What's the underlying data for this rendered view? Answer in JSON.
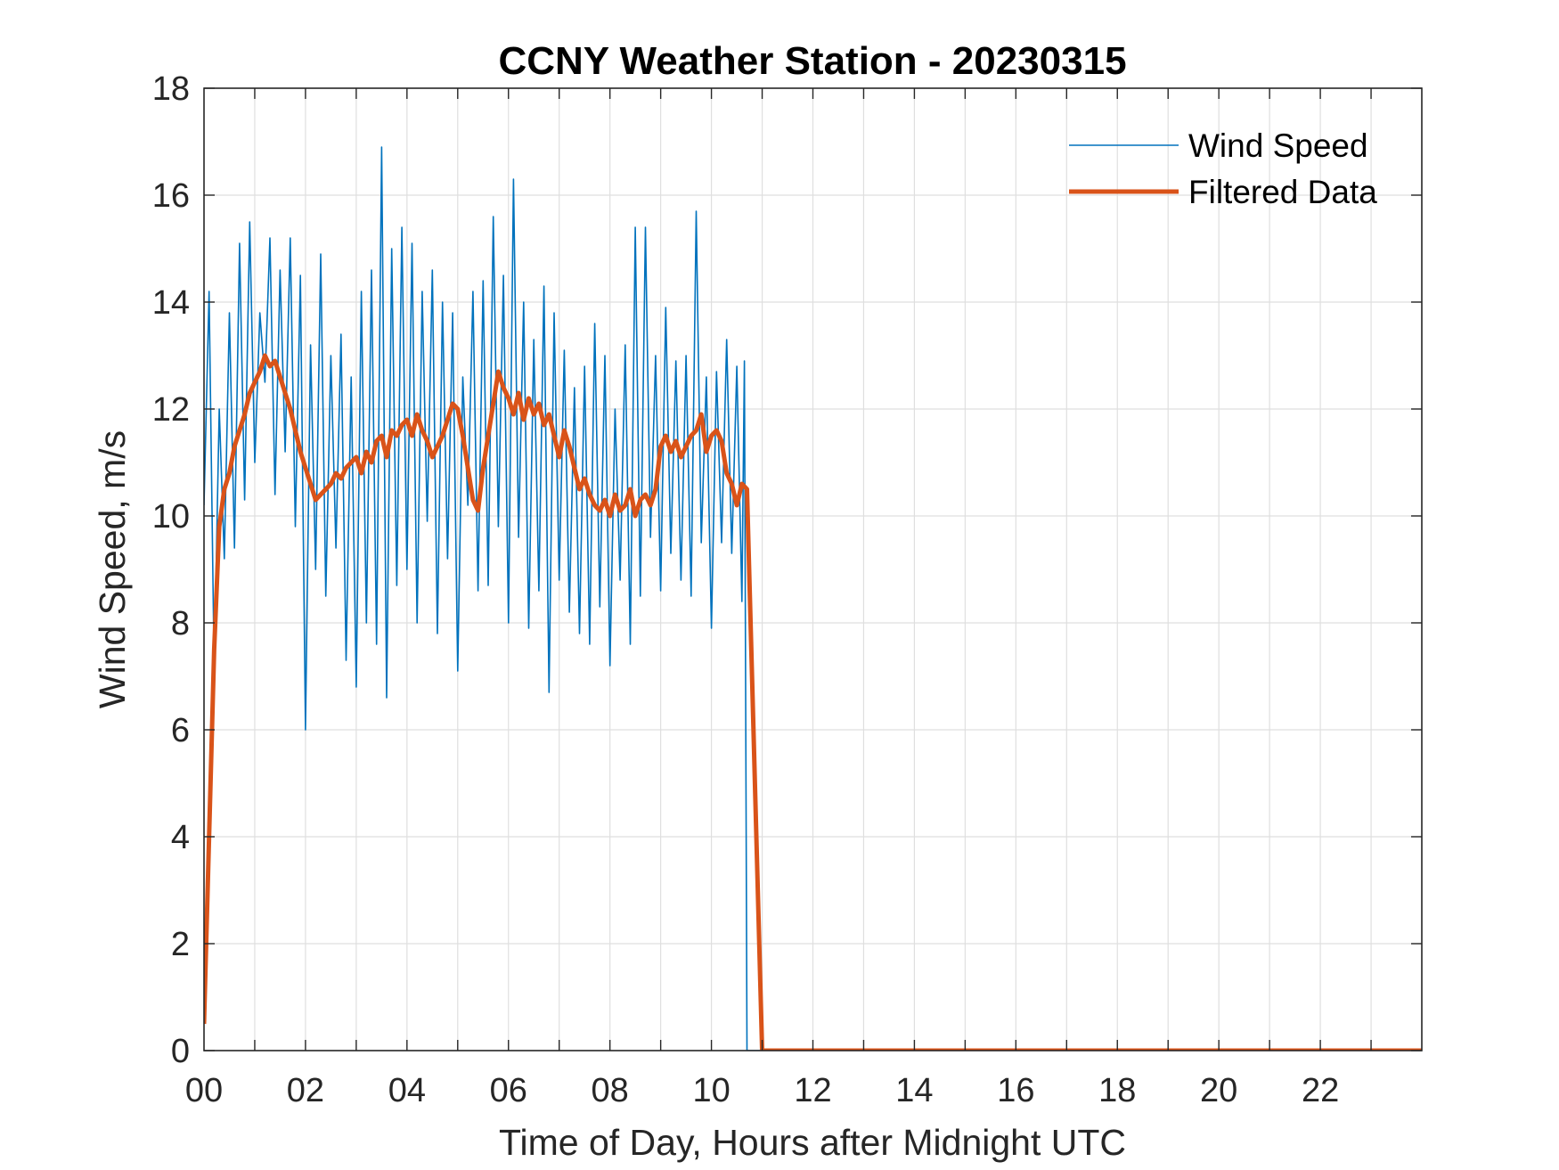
{
  "chart_data": {
    "type": "line",
    "title": "CCNY Weather Station - 20230315",
    "xlabel": "Time of Day, Hours after Midnight UTC",
    "ylabel": "Wind Speed, m/s",
    "xlim": [
      0,
      24
    ],
    "ylim": [
      0,
      18
    ],
    "xticks": [
      0,
      2,
      4,
      6,
      8,
      10,
      12,
      14,
      16,
      18,
      20,
      22
    ],
    "xtick_labels": [
      "00",
      "02",
      "04",
      "06",
      "08",
      "10",
      "12",
      "14",
      "16",
      "18",
      "20",
      "22"
    ],
    "yticks": [
      0,
      2,
      4,
      6,
      8,
      10,
      12,
      14,
      16,
      18
    ],
    "ytick_labels": [
      "0",
      "2",
      "4",
      "6",
      "8",
      "10",
      "12",
      "14",
      "16",
      "18"
    ],
    "grid": true,
    "legend_position": "top-right",
    "series": [
      {
        "name": "Wind Speed",
        "color": "#0072BD",
        "style": "thin",
        "x": [
          0.0,
          0.1,
          0.2,
          0.3,
          0.4,
          0.5,
          0.6,
          0.7,
          0.8,
          0.9,
          1.0,
          1.1,
          1.2,
          1.3,
          1.4,
          1.5,
          1.6,
          1.7,
          1.8,
          1.9,
          2.0,
          2.1,
          2.2,
          2.3,
          2.4,
          2.5,
          2.6,
          2.7,
          2.8,
          2.9,
          3.0,
          3.1,
          3.2,
          3.3,
          3.4,
          3.5,
          3.6,
          3.7,
          3.8,
          3.9,
          4.0,
          4.1,
          4.2,
          4.3,
          4.4,
          4.5,
          4.6,
          4.7,
          4.8,
          4.9,
          5.0,
          5.1,
          5.2,
          5.3,
          5.4,
          5.5,
          5.6,
          5.7,
          5.8,
          5.9,
          6.0,
          6.1,
          6.2,
          6.3,
          6.4,
          6.5,
          6.6,
          6.7,
          6.8,
          6.9,
          7.0,
          7.1,
          7.2,
          7.3,
          7.4,
          7.5,
          7.6,
          7.7,
          7.8,
          7.9,
          8.0,
          8.1,
          8.2,
          8.3,
          8.4,
          8.5,
          8.6,
          8.7,
          8.8,
          8.9,
          9.0,
          9.1,
          9.2,
          9.3,
          9.4,
          9.5,
          9.6,
          9.7,
          9.8,
          9.9,
          10.0,
          10.1,
          10.2,
          10.3,
          10.4,
          10.5,
          10.6,
          10.65,
          10.7,
          24.0
        ],
        "values": [
          10.2,
          14.2,
          7.1,
          12.0,
          9.2,
          13.8,
          9.4,
          15.1,
          10.3,
          15.5,
          11.0,
          13.8,
          12.5,
          15.2,
          10.4,
          14.6,
          11.2,
          15.2,
          9.8,
          14.5,
          6.0,
          13.2,
          9.0,
          14.9,
          8.5,
          13.0,
          9.4,
          13.4,
          7.3,
          12.6,
          6.8,
          14.2,
          8.0,
          14.6,
          7.6,
          16.9,
          6.6,
          15.0,
          8.7,
          15.4,
          9.0,
          15.1,
          8.0,
          14.2,
          9.9,
          14.6,
          7.8,
          14.0,
          9.2,
          13.8,
          7.1,
          12.6,
          10.2,
          14.2,
          8.6,
          14.4,
          8.7,
          15.6,
          9.8,
          14.5,
          8.0,
          16.3,
          9.6,
          14.0,
          7.9,
          13.3,
          8.6,
          14.3,
          6.7,
          13.8,
          8.8,
          13.1,
          8.2,
          12.4,
          7.8,
          12.8,
          7.6,
          13.6,
          8.3,
          13.0,
          7.2,
          12.0,
          8.8,
          13.2,
          7.6,
          15.4,
          8.5,
          15.4,
          9.6,
          13.0,
          8.6,
          13.9,
          9.3,
          12.9,
          8.8,
          13.0,
          8.5,
          15.7,
          9.5,
          12.6,
          7.9,
          12.7,
          9.5,
          13.3,
          9.3,
          12.8,
          8.4,
          12.9,
          0.0,
          0.0
        ]
      },
      {
        "name": "Filtered Data",
        "color": "#D95319",
        "style": "thick",
        "x": [
          0.0,
          0.1,
          0.2,
          0.3,
          0.4,
          0.5,
          0.6,
          0.7,
          0.8,
          0.9,
          1.0,
          1.1,
          1.2,
          1.3,
          1.4,
          1.5,
          1.6,
          1.7,
          1.8,
          1.9,
          2.0,
          2.1,
          2.2,
          2.3,
          2.4,
          2.5,
          2.6,
          2.7,
          2.8,
          2.9,
          3.0,
          3.1,
          3.2,
          3.3,
          3.4,
          3.5,
          3.6,
          3.7,
          3.8,
          3.9,
          4.0,
          4.1,
          4.2,
          4.3,
          4.4,
          4.5,
          4.6,
          4.7,
          4.8,
          4.9,
          5.0,
          5.1,
          5.2,
          5.3,
          5.4,
          5.5,
          5.6,
          5.7,
          5.8,
          5.9,
          6.0,
          6.1,
          6.2,
          6.3,
          6.4,
          6.5,
          6.6,
          6.7,
          6.8,
          6.9,
          7.0,
          7.1,
          7.2,
          7.3,
          7.4,
          7.5,
          7.6,
          7.7,
          7.8,
          7.9,
          8.0,
          8.1,
          8.2,
          8.3,
          8.4,
          8.5,
          8.6,
          8.7,
          8.8,
          8.9,
          9.0,
          9.1,
          9.2,
          9.3,
          9.4,
          9.5,
          9.6,
          9.7,
          9.8,
          9.9,
          10.0,
          10.1,
          10.2,
          10.3,
          10.4,
          10.5,
          10.6,
          10.7,
          11.0,
          24.0
        ],
        "values": [
          0.5,
          4.0,
          7.5,
          9.8,
          10.5,
          10.8,
          11.3,
          11.6,
          11.9,
          12.3,
          12.5,
          12.7,
          13.0,
          12.8,
          12.9,
          12.6,
          12.3,
          12.0,
          11.6,
          11.2,
          10.9,
          10.6,
          10.3,
          10.4,
          10.5,
          10.6,
          10.8,
          10.7,
          10.9,
          11.0,
          11.1,
          10.8,
          11.2,
          11.0,
          11.4,
          11.5,
          11.1,
          11.6,
          11.5,
          11.7,
          11.8,
          11.5,
          11.9,
          11.6,
          11.4,
          11.1,
          11.3,
          11.5,
          11.8,
          12.1,
          12.0,
          11.5,
          10.9,
          10.3,
          10.1,
          10.9,
          11.5,
          12.1,
          12.7,
          12.4,
          12.2,
          11.9,
          12.3,
          11.8,
          12.2,
          11.9,
          12.1,
          11.7,
          11.9,
          11.5,
          11.1,
          11.6,
          11.3,
          10.9,
          10.5,
          10.7,
          10.4,
          10.2,
          10.1,
          10.3,
          10.0,
          10.4,
          10.1,
          10.2,
          10.5,
          10.0,
          10.3,
          10.4,
          10.2,
          10.5,
          11.3,
          11.5,
          11.2,
          11.4,
          11.1,
          11.3,
          11.5,
          11.6,
          11.9,
          11.2,
          11.5,
          11.6,
          11.4,
          10.8,
          10.6,
          10.2,
          10.6,
          10.5,
          0.0,
          0.0
        ]
      }
    ]
  }
}
